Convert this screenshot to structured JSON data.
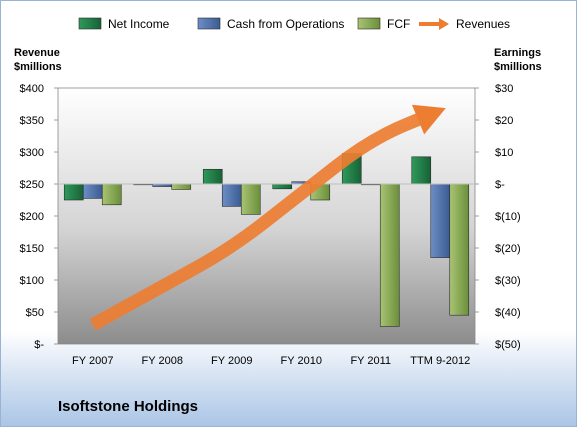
{
  "company": "Isoftstone Holdings",
  "chart_data": {
    "type": "bar",
    "categories": [
      "FY 2007",
      "FY 2008",
      "FY 2009",
      "FY 2010",
      "FY 2011",
      "TTM 9-2012"
    ],
    "series": [
      {
        "name": "Net Income",
        "axis": "right",
        "color": "#1e7a44",
        "values": [
          -5,
          -0.2,
          4.6,
          -1.5,
          9.5,
          8.5
        ]
      },
      {
        "name": "Cash from Operations",
        "axis": "right",
        "color": "#4a6ea8",
        "values": [
          -4.5,
          -0.8,
          -7,
          0.7,
          0,
          -23
        ]
      },
      {
        "name": "FCF",
        "axis": "right",
        "color": "#7fa24a",
        "values": [
          -6.5,
          -1.7,
          -9.5,
          -5,
          -44.5,
          -41
        ]
      },
      {
        "name": "Revenues",
        "type": "line",
        "axis": "left",
        "color": "#ed7d31",
        "values": [
          30,
          90,
          150,
          235,
          320,
          365
        ]
      }
    ],
    "left_axis": {
      "title_lines": [
        "Revenue",
        "$millions"
      ],
      "ylim": [
        0,
        400
      ],
      "ticks": [
        0,
        50,
        100,
        150,
        200,
        250,
        300,
        350,
        400
      ],
      "tick_labels": [
        "$-",
        "$50",
        "$100",
        "$150",
        "$200",
        "$250",
        "$300",
        "$350",
        "$400"
      ]
    },
    "right_axis": {
      "title_lines": [
        "Earnings",
        "$millions"
      ],
      "ylim": [
        -50,
        30
      ],
      "ticks": [
        -50,
        -40,
        -30,
        -20,
        -10,
        0,
        10,
        20,
        30
      ],
      "tick_labels": [
        "$(50)",
        "$(40)",
        "$(30)",
        "$(20)",
        "$(10)",
        "$-",
        "$10",
        "$20",
        "$30"
      ]
    },
    "legend_position": "top",
    "grid": false
  }
}
